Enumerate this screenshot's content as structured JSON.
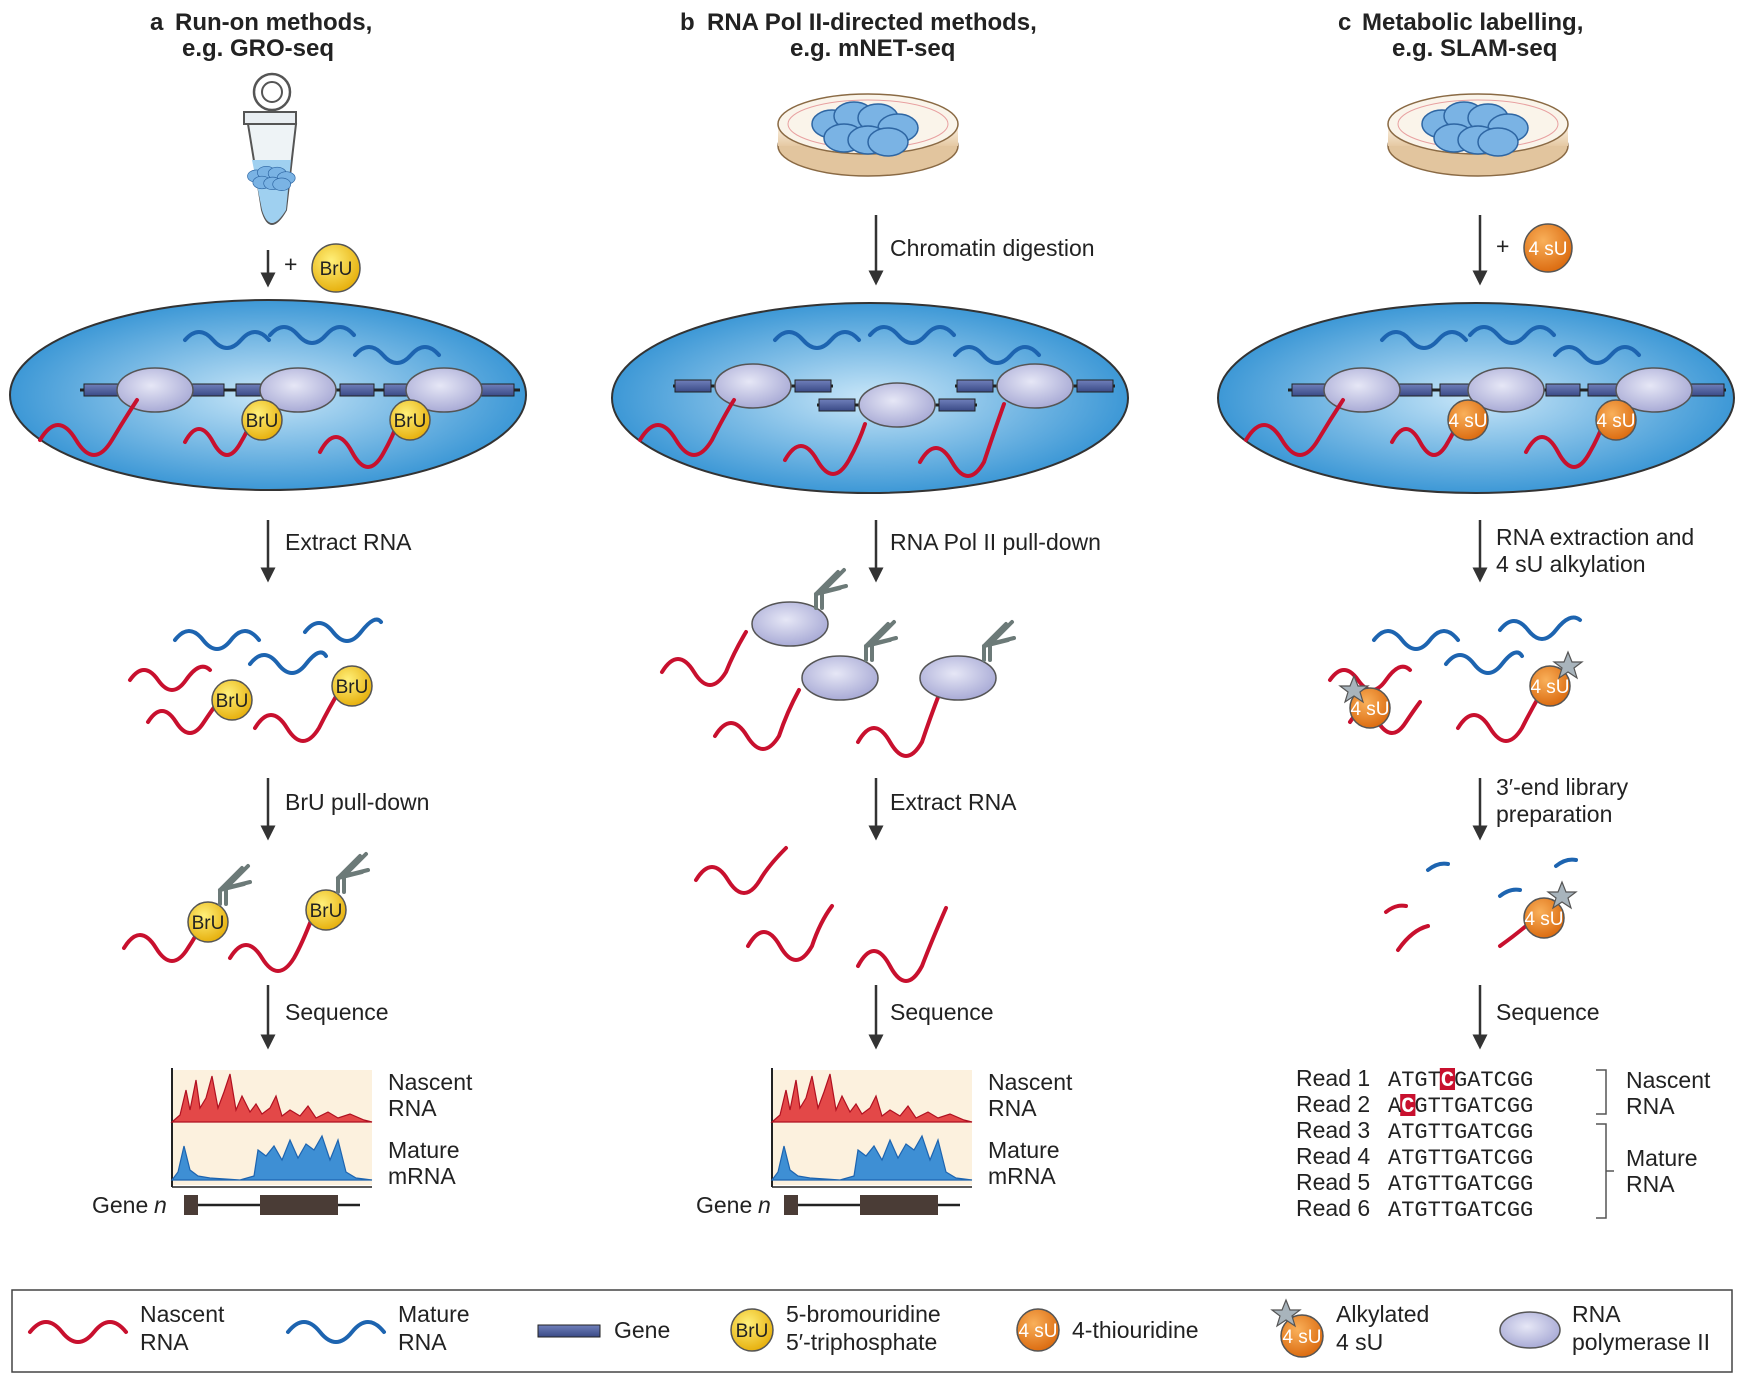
{
  "panels": {
    "a": {
      "letter": "a",
      "title1": "Run-on methods,",
      "title2": "e.g. GRO-seq",
      "step1": "+",
      "step2": "Extract RNA",
      "step3": "BrU pull-down",
      "step4": "Sequence"
    },
    "b": {
      "letter": "b",
      "title1": "RNA Pol II-directed methods,",
      "title2": "e.g. mNET-seq",
      "step1": "Chromatin digestion",
      "step2": "RNA Pol II pull-down",
      "step3": "Extract RNA",
      "step4": "Sequence"
    },
    "c": {
      "letter": "c",
      "title1": "Metabolic labelling,",
      "title2": "e.g. SLAM-seq",
      "step1": "+",
      "step2a": "RNA extraction and",
      "step2b": "4 sU alkylation",
      "step3a": "3′-end library",
      "step3b": "preparation",
      "step4": "Sequence"
    }
  },
  "badges": {
    "bru": "BrU",
    "su": "4 sU"
  },
  "tracks": {
    "nascent1": "Nascent",
    "nascent2": "RNA",
    "mature1": "Mature",
    "mature2": "mRNA",
    "gene": "Gene",
    "gene_italic": "n"
  },
  "reads": {
    "rows": [
      {
        "label": "Read 1",
        "pre": "ATGT",
        "hl": "C",
        "post": "GATCGG"
      },
      {
        "label": "Read 2",
        "pre": "A",
        "hl": "C",
        "post": "GTTGATCGG"
      },
      {
        "label": "Read 3",
        "pre": "ATGTTGATCGG",
        "hl": "",
        "post": ""
      },
      {
        "label": "Read 4",
        "pre": "ATGTTGATCGG",
        "hl": "",
        "post": ""
      },
      {
        "label": "Read 5",
        "pre": "ATGTTGATCGG",
        "hl": "",
        "post": ""
      },
      {
        "label": "Read 6",
        "pre": "ATGTTGATCGG",
        "hl": "",
        "post": ""
      }
    ],
    "group1a": "Nascent",
    "group1b": "RNA",
    "group2a": "Mature",
    "group2b": "RNA"
  },
  "legend": {
    "nascent_a": "Nascent",
    "nascent_b": "RNA",
    "mature_a": "Mature",
    "mature_b": "RNA",
    "gene": "Gene",
    "bru_a": "5-bromouridine",
    "bru_b": "5′-triphosphate",
    "su": "4-thiouridine",
    "alk_a": "Alkylated",
    "alk_b": "4 sU",
    "pol_a": "RNA",
    "pol_b": "polymerase II"
  },
  "colors": {
    "nascent": "#c8102e",
    "mature": "#1d64b0",
    "gene": "#4a5a9a",
    "bru": "#f5cc2a",
    "su": "#f08a24",
    "pol": "#c4c6e6",
    "nucleus": "#7fbfe8",
    "star": "#a8b4bc"
  }
}
